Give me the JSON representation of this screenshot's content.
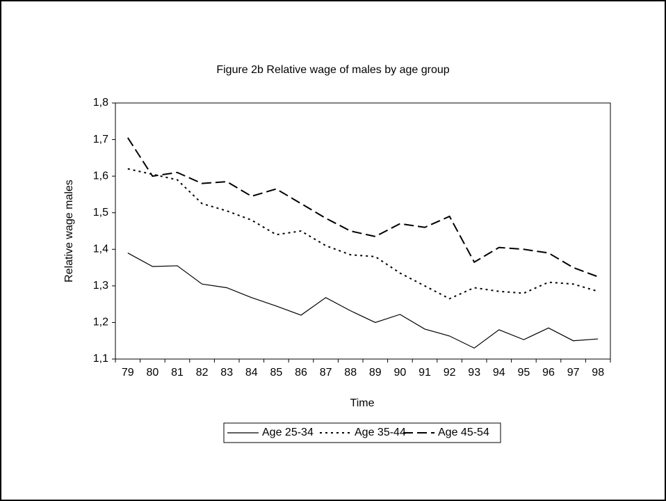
{
  "chart_data": {
    "type": "line",
    "title": "Figure 2b Relative wage of males by age group",
    "x_label": "Time",
    "y_label": "Relative wage males",
    "categories": [
      "79",
      "80",
      "81",
      "82",
      "83",
      "84",
      "85",
      "86",
      "87",
      "88",
      "89",
      "90",
      "91",
      "92",
      "93",
      "94",
      "95",
      "96",
      "97",
      "98"
    ],
    "series": [
      {
        "name": "Age 25-34",
        "color": "#000000",
        "style": "solid",
        "values": [
          1.39,
          1.353,
          1.355,
          1.305,
          1.295,
          1.268,
          1.245,
          1.22,
          1.268,
          1.232,
          1.2,
          1.222,
          1.182,
          1.163,
          1.13,
          1.18,
          1.153,
          1.185,
          1.15,
          1.155
        ]
      },
      {
        "name": "Age 35-44",
        "color": "#000000",
        "style": "dotted",
        "values": [
          1.62,
          1.605,
          1.59,
          1.525,
          1.505,
          1.48,
          1.44,
          1.45,
          1.41,
          1.385,
          1.38,
          1.335,
          1.3,
          1.265,
          1.295,
          1.285,
          1.28,
          1.31,
          1.305,
          1.285
        ]
      },
      {
        "name": "Age 45-54",
        "color": "#000000",
        "style": "dashed",
        "values": [
          1.705,
          1.6,
          1.61,
          1.58,
          1.585,
          1.545,
          1.565,
          1.525,
          1.485,
          1.45,
          1.435,
          1.47,
          1.46,
          1.49,
          1.365,
          1.405,
          1.4,
          1.39,
          1.35,
          1.325
        ]
      }
    ],
    "ylim": [
      1.1,
      1.8
    ],
    "yticks": [
      {
        "value": 1.1,
        "label": "1,1"
      },
      {
        "value": 1.2,
        "label": "1,2"
      },
      {
        "value": 1.3,
        "label": "1,3"
      },
      {
        "value": 1.4,
        "label": "1,4"
      },
      {
        "value": 1.5,
        "label": "1,5"
      },
      {
        "value": 1.6,
        "label": "1,6"
      },
      {
        "value": 1.7,
        "label": "1,7"
      },
      {
        "value": 1.8,
        "label": "1,8"
      }
    ],
    "grid": false,
    "legend": "bottom"
  }
}
